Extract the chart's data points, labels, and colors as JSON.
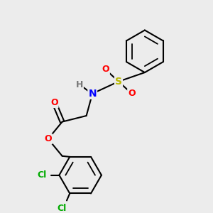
{
  "background_color": "#ececec",
  "bond_color": "#000000",
  "atom_colors": {
    "O": "#ff0000",
    "N": "#0000ff",
    "S": "#b8b800",
    "Cl": "#00aa00",
    "H": "#777777"
  },
  "figsize": [
    3.0,
    3.0
  ],
  "dpi": 100
}
